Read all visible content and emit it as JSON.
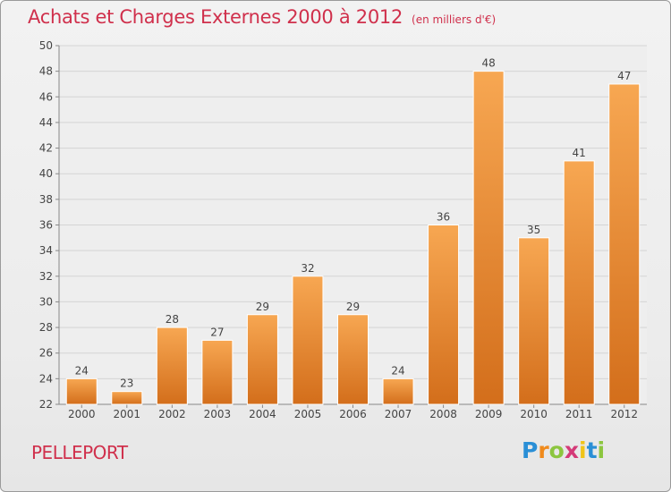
{
  "title": "Achats et Charges Externes 2000 à 2012",
  "unit": "(en milliers d'€)",
  "commune": "PELLEPORT",
  "logo": {
    "letters": [
      "P",
      "r",
      "o",
      "x",
      "i",
      "t",
      "i"
    ],
    "colors": [
      "#2a8fd6",
      "#f08a1c",
      "#8cc63f",
      "#d43a78",
      "#f0c419",
      "#2a8fd6",
      "#8cc63f"
    ]
  },
  "colors": {
    "title": "#d0304c",
    "bar_light": "#f7a752",
    "bar_dark": "#d7701e",
    "grid": "#d6d6d6"
  },
  "chart_data": {
    "type": "bar",
    "categories": [
      "2000",
      "2001",
      "2002",
      "2003",
      "2004",
      "2005",
      "2006",
      "2007",
      "2008",
      "2009",
      "2010",
      "2011",
      "2012"
    ],
    "values": [
      24,
      23,
      28,
      27,
      29,
      32,
      29,
      24,
      36,
      48,
      35,
      41,
      47
    ],
    "data_labels": [
      "24",
      "23",
      "28",
      "27",
      "29",
      "32",
      "29",
      "24",
      "36",
      "48",
      "35",
      "41",
      "47"
    ],
    "ylim": [
      22,
      50
    ],
    "yticks": [
      22,
      24,
      26,
      28,
      30,
      32,
      34,
      36,
      38,
      40,
      42,
      44,
      46,
      48,
      50
    ],
    "grid": true
  }
}
